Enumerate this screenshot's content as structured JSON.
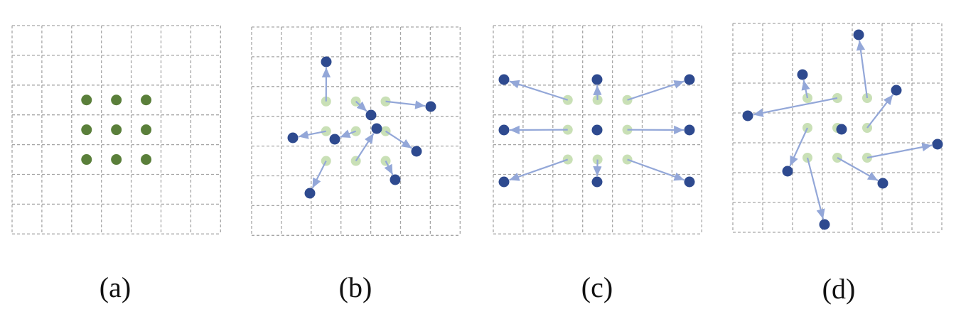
{
  "colors": {
    "grid": "#a6a6a6",
    "sample_point": "#5a7f3a",
    "original_point": "#c9e0b6",
    "offset_point": "#2e4a8f",
    "arrow": "#93a7d8",
    "caption": "#111111"
  },
  "panels": [
    {
      "caption": "(a)"
    },
    {
      "caption": "(b)"
    },
    {
      "caption": "(c)"
    },
    {
      "caption": "(d)"
    }
  ]
}
